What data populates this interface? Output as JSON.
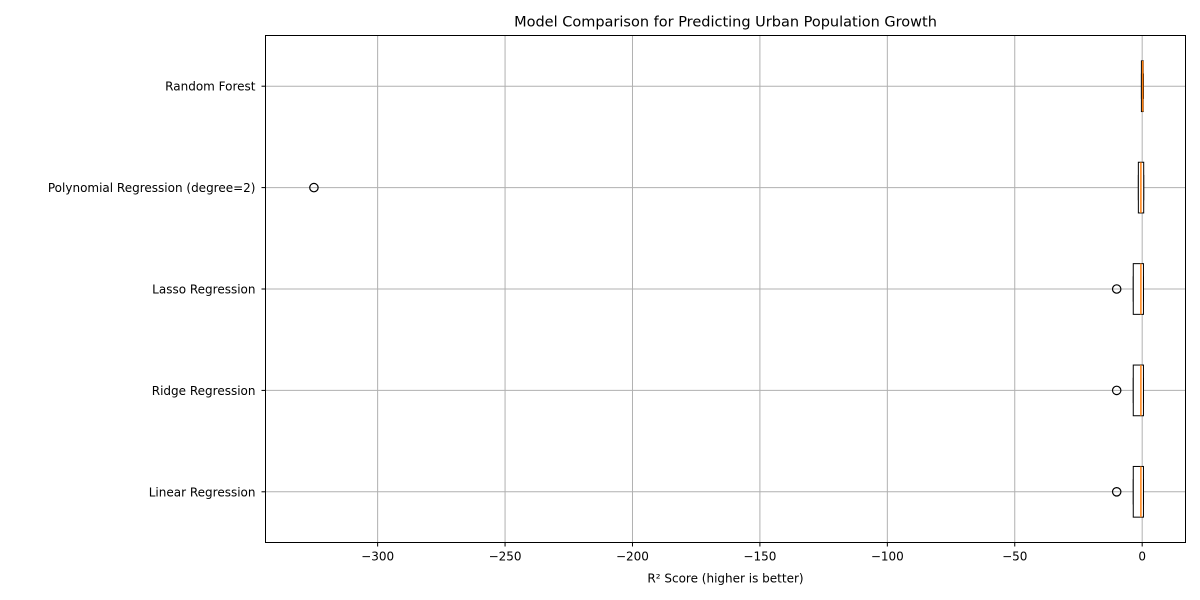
{
  "chart_data": {
    "type": "boxplot",
    "orientation": "horizontal",
    "title": "Model Comparison for Predicting Urban Population Growth",
    "xlabel": "R² Score (higher is better)",
    "ylabel": "",
    "xlim": [
      -344,
      17
    ],
    "grid": true,
    "xticks": [
      -300,
      -250,
      -200,
      -150,
      -100,
      -50,
      0
    ],
    "xtick_labels": [
      "−300",
      "−250",
      "−200",
      "−150",
      "−100",
      "−50",
      "0"
    ],
    "categories": [
      "Linear Regression",
      "Ridge Regression",
      "Lasso Regression",
      "Polynomial Regression (degree=2)",
      "Random Forest"
    ],
    "boxes": [
      {
        "whisker_low": -3.5,
        "q1": -3.5,
        "median": -0.5,
        "q3": 0.5,
        "whisker_high": 0.5,
        "outliers": [
          -10
        ]
      },
      {
        "whisker_low": -3.5,
        "q1": -3.5,
        "median": -0.5,
        "q3": 0.5,
        "whisker_high": 0.5,
        "outliers": [
          -10
        ]
      },
      {
        "whisker_low": -3.5,
        "q1": -3.5,
        "median": -0.5,
        "q3": 0.5,
        "whisker_high": 0.5,
        "outliers": [
          -10
        ]
      },
      {
        "whisker_low": -1.5,
        "q1": -1.5,
        "median": -0.5,
        "q3": 0.6,
        "whisker_high": 0.6,
        "outliers": [
          -325
        ]
      },
      {
        "whisker_low": -0.3,
        "q1": -0.3,
        "median": 0.2,
        "q3": 0.4,
        "whisker_high": 0.5,
        "outliers": []
      }
    ],
    "colors": {
      "box_edge": "#000000",
      "box_fill": "#ffffff",
      "median": "#ff7f0e",
      "grid": "#b0b0b0"
    }
  }
}
